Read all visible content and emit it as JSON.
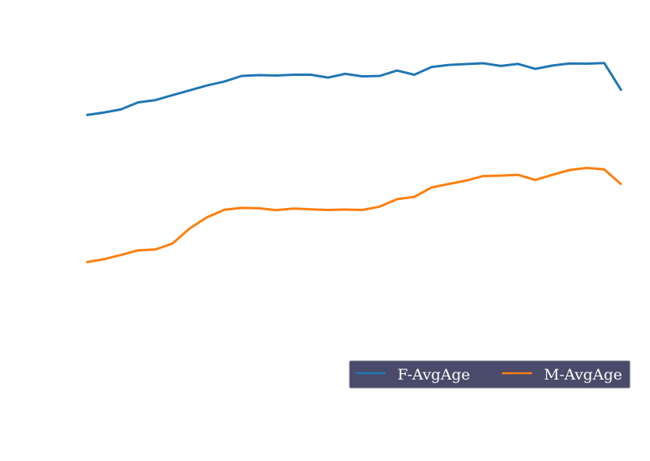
{
  "chart_data": {
    "type": "line",
    "title": "",
    "xlabel": "",
    "ylabel": "",
    "grid": false,
    "axes_visible": false,
    "legend_position": "bottom-right",
    "ylim": [
      0,
      100
    ],
    "series": [
      {
        "name": "F-AvgAge",
        "color": "#1f77b4",
        "values": [
          70.7,
          71.9,
          73.4,
          76.8,
          77.9,
          80.3,
          82.6,
          84.9,
          86.8,
          89.5,
          89.9,
          89.7,
          90.1,
          90.1,
          88.7,
          90.5,
          89.3,
          89.5,
          92.1,
          90.1,
          93.8,
          94.8,
          95.2,
          95.6,
          94.3,
          95.3,
          92.9,
          94.5,
          95.5,
          95.4,
          95.7,
          82.4
        ]
      },
      {
        "name": "M-AvgAge",
        "color": "#ff7f0e",
        "values": [
          0.0,
          1.4,
          3.5,
          5.7,
          6.1,
          9.0,
          16.3,
          21.6,
          25.2,
          26.1,
          25.9,
          25.0,
          25.8,
          25.4,
          25.1,
          25.3,
          25.1,
          26.7,
          30.3,
          31.4,
          35.9,
          37.6,
          39.2,
          41.4,
          41.6,
          42.0,
          39.5,
          42.0,
          44.3,
          45.3,
          44.6,
          37.3
        ]
      }
    ]
  }
}
